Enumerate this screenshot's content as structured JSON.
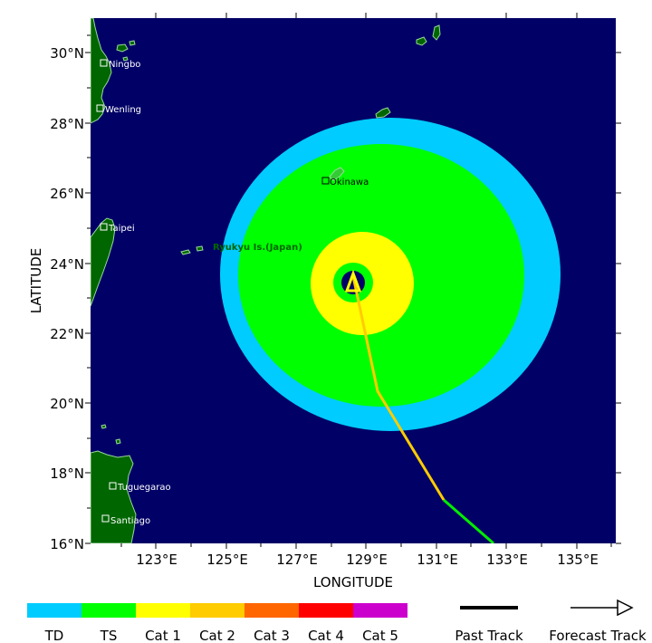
{
  "map": {
    "x_axis_label": "LONGITUDE",
    "y_axis_label": "LATITUDE",
    "lon_ticks": [
      "123°E",
      "125°E",
      "127°E",
      "129°E",
      "131°E",
      "133°E",
      "135°E"
    ],
    "lat_ticks": [
      "16°N",
      "18°N",
      "20°N",
      "22°N",
      "24°N",
      "26°N",
      "28°N",
      "30°N"
    ],
    "colors": {
      "ocean": "#000066",
      "land": "#006600",
      "coast": "#9ad89a",
      "track_past": "#000000",
      "track_forecast_ts": "#00ee00",
      "track_forecast_cat1": "#ffcc00",
      "storm_center": "#ffff00"
    },
    "wind_field": {
      "td_color": "#00ccff",
      "ts_color": "#00ff00",
      "cat1_color": "#ffff00"
    }
  },
  "places": [
    {
      "name": "Ningbo"
    },
    {
      "name": "Wenling"
    },
    {
      "name": "Taipei"
    },
    {
      "name": "Okinawa"
    },
    {
      "name": "Tuguegarao"
    },
    {
      "name": "Santiago"
    }
  ],
  "region_label": "Ryukyu Is.(Japan)",
  "legend": {
    "categories": [
      {
        "label": "TD",
        "color": "#00ccff"
      },
      {
        "label": "TS",
        "color": "#00ff00"
      },
      {
        "label": "Cat 1",
        "color": "#ffff00"
      },
      {
        "label": "Cat 2",
        "color": "#ffcc00"
      },
      {
        "label": "Cat 3",
        "color": "#ff6600"
      },
      {
        "label": "Cat 4",
        "color": "#ff0000"
      },
      {
        "label": "Cat 5",
        "color": "#cc00cc"
      }
    ],
    "past_track_label": "Past Track",
    "forecast_track_label": "Forecast Track"
  }
}
